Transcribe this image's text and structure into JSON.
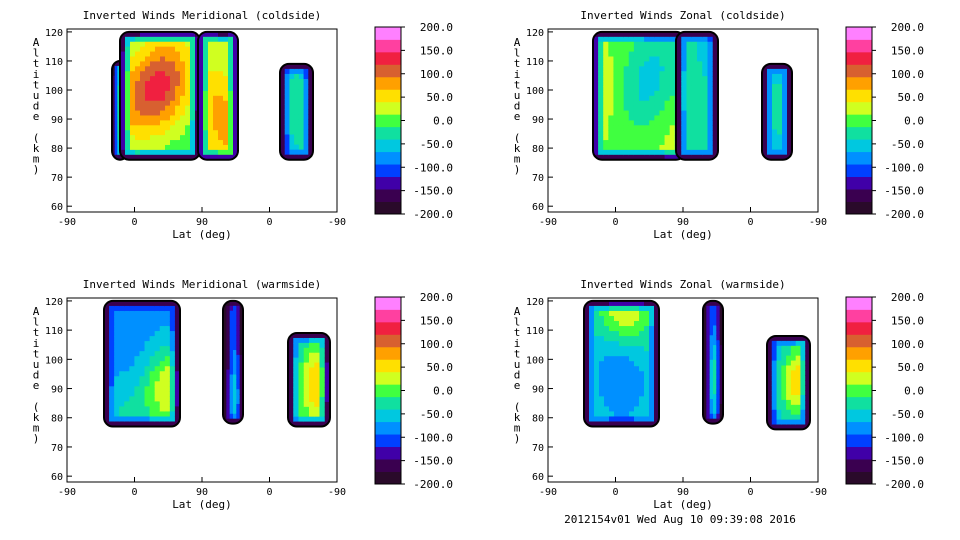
{
  "chart_data": [
    {
      "type": "heatmap",
      "title": "Inverted Winds Meridional (coldside)",
      "xlabel": "Lat (deg)",
      "ylabel": "Altitude (km)",
      "x_ticks": [
        "-90",
        "0",
        "90",
        "0",
        "-90"
      ],
      "y_ticks": [
        "60",
        "70",
        "80",
        "90",
        "100",
        "110",
        "120"
      ],
      "ylim": [
        58,
        121
      ],
      "colorbar_ticks": [
        "200.0",
        "150.0",
        "100.0",
        "50.0",
        "0.0",
        "-50.0",
        "-100.0",
        "-150.0",
        "-200.0"
      ],
      "colorbar_range": [
        -200,
        200
      ],
      "regions": [
        {
          "x_range": [
            -13,
            12
          ],
          "y_range": [
            76,
            110
          ],
          "base": -10,
          "peaks": [
            {
              "x": -5,
              "y": 90,
              "value": 60
            },
            {
              "x": 5,
              "y": 100,
              "value": 40
            }
          ]
        },
        {
          "x_range": [
            -13,
            66
          ],
          "y_range": [
            76,
            120
          ],
          "base": -10,
          "peaks": [
            {
              "x": 0,
              "y": 95,
              "value": 60
            },
            {
              "x": 28,
              "y": 102,
              "value": 100
            },
            {
              "x": 50,
              "y": 110,
              "value": 20
            }
          ]
        },
        {
          "x_range": [
            -13,
            28
          ],
          "y_range": [
            76,
            120
          ],
          "base": 30,
          "peaks": [
            {
              "x": 5,
              "y": 95,
              "value": 70
            },
            {
              "x": 20,
              "y": 85,
              "value": 60
            },
            {
              "x": 10,
              "y": 115,
              "value": 10
            }
          ]
        },
        {
          "x_range": [
            -15,
            26
          ],
          "y_range": [
            76,
            109
          ],
          "base": -60,
          "peaks": [
            {
              "x": 5,
              "y": 95,
              "value": -20
            },
            {
              "x": 15,
              "y": 85,
              "value": -40
            }
          ]
        }
      ]
    },
    {
      "type": "heatmap",
      "title": "Inverted Winds Zonal (coldside)",
      "xlabel": "Lat (deg)",
      "ylabel": "Altitude (km)",
      "x_ticks": [
        "-90",
        "0",
        "90",
        "0",
        "-90"
      ],
      "y_ticks": [
        "60",
        "70",
        "80",
        "90",
        "100",
        "110",
        "120"
      ],
      "ylim": [
        58,
        121
      ],
      "colorbar_ticks": [
        "200.0",
        "150.0",
        "100.0",
        "50.0",
        "0.0",
        "-50.0",
        "-100.0",
        "-150.0",
        "-200.0"
      ],
      "colorbar_range": [
        -200,
        200
      ],
      "regions": [
        {
          "x_range": [
            -13,
            66
          ],
          "y_range": [
            76,
            120
          ],
          "base": 10,
          "peaks": [
            {
              "x": 30,
              "y": 99,
              "value": -50
            },
            {
              "x": -5,
              "y": 100,
              "value": 40
            },
            {
              "x": 50,
              "y": 115,
              "value": -20
            },
            {
              "x": 55,
              "y": 88,
              "value": 30
            }
          ]
        },
        {
          "x_range": [
            -13,
            28
          ],
          "y_range": [
            76,
            120
          ],
          "base": -40,
          "peaks": [
            {
              "x": 5,
              "y": 100,
              "value": -20
            },
            {
              "x": 20,
              "y": 115,
              "value": -60
            }
          ]
        },
        {
          "x_range": [
            -15,
            26
          ],
          "y_range": [
            76,
            109
          ],
          "base": -60,
          "peaks": [
            {
              "x": 5,
              "y": 95,
              "value": -30
            },
            {
              "x": 15,
              "y": 85,
              "value": -50
            }
          ]
        }
      ]
    },
    {
      "type": "heatmap",
      "title": "Inverted Winds Meridional (warmside)",
      "xlabel": "Lat (deg)",
      "ylabel": "Altitude (km)",
      "x_ticks": [
        "-90",
        "0",
        "90",
        "0",
        "-90"
      ],
      "y_ticks": [
        "60",
        "70",
        "80",
        "90",
        "100",
        "110",
        "120"
      ],
      "ylim": [
        58,
        121
      ],
      "colorbar_ticks": [
        "200.0",
        "150.0",
        "100.0",
        "50.0",
        "0.0",
        "-50.0",
        "-100.0",
        "-150.0",
        "-200.0"
      ],
      "colorbar_range": [
        -200,
        200
      ],
      "regions": [
        {
          "x_range": [
            -20,
            56
          ],
          "y_range": [
            77,
            120
          ],
          "base": -80,
          "peaks": [
            {
              "x": 20,
              "y": 100,
              "value": -90
            },
            {
              "x": 45,
              "y": 90,
              "value": 40
            },
            {
              "x": 0,
              "y": 80,
              "value": -40
            }
          ]
        },
        {
          "x_range": [
            -13,
            28
          ],
          "y_range": [
            78,
            120
          ],
          "base": -80,
          "peaks": [
            {
              "x": 20,
              "y": 88,
              "value": 20
            },
            {
              "x": 0,
              "y": 105,
              "value": -110
            }
          ]
        },
        {
          "x_range": [
            -15,
            26
          ],
          "y_range": [
            77,
            109
          ],
          "base": -40,
          "peaks": [
            {
              "x": 13,
              "y": 95,
              "value": 40
            },
            {
              "x": 10,
              "y": 85,
              "value": 10
            }
          ]
        }
      ]
    },
    {
      "type": "heatmap",
      "title": "Inverted Winds Zonal (warmside)",
      "xlabel": "Lat (deg)",
      "ylabel": "Altitude (km)",
      "x_ticks": [
        "-90",
        "0",
        "90",
        "0",
        "-90"
      ],
      "y_ticks": [
        "60",
        "70",
        "80",
        "90",
        "100",
        "110",
        "120"
      ],
      "ylim": [
        58,
        121
      ],
      "colorbar_ticks": [
        "200.0",
        "150.0",
        "100.0",
        "50.0",
        "0.0",
        "-50.0",
        "-100.0",
        "-150.0",
        "-200.0"
      ],
      "colorbar_range": [
        -200,
        200
      ],
      "regions": [
        {
          "x_range": [
            -20,
            56
          ],
          "y_range": [
            77,
            120
          ],
          "base": -40,
          "peaks": [
            {
              "x": 20,
              "y": 118,
              "value": 50
            },
            {
              "x": 20,
              "y": 93,
              "value": -90
            },
            {
              "x": 5,
              "y": 105,
              "value": -60
            }
          ]
        },
        {
          "x_range": [
            -13,
            28
          ],
          "y_range": [
            78,
            120
          ],
          "base": -80,
          "peaks": [
            {
              "x": 15,
              "y": 95,
              "value": 20
            },
            {
              "x": 5,
              "y": 110,
              "value": -100
            }
          ]
        },
        {
          "x_range": [
            -15,
            26
          ],
          "y_range": [
            76,
            108
          ],
          "base": -60,
          "peaks": [
            {
              "x": 12,
              "y": 91,
              "value": 40
            },
            {
              "x": 20,
              "y": 100,
              "value": -20
            }
          ]
        }
      ]
    }
  ],
  "footer": "2012154v01 Wed Aug 10 09:39:08 2016",
  "colors": {
    "colorbar_stops": [
      "#2a0a2a",
      "#3a0050",
      "#4000a8",
      "#0040ff",
      "#0090ff",
      "#00c8e0",
      "#10e0a0",
      "#40ff40",
      "#d0ff20",
      "#ffe000",
      "#ffa000",
      "#d86030",
      "#f02040",
      "#ff40a0",
      "#ff80ff"
    ]
  }
}
